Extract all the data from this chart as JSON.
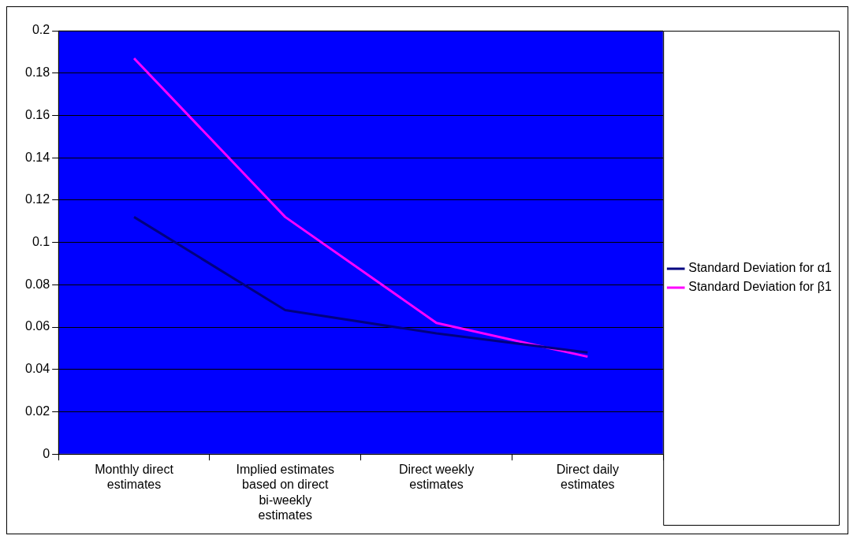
{
  "chart_data": {
    "type": "line",
    "categories": [
      "Monthly direct estimates",
      "Implied estimates based on direct bi-weekly estimates",
      "Direct weekly estimates",
      "Direct daily estimates"
    ],
    "series": [
      {
        "name": "Standard Deviation for α1",
        "color": "#000080",
        "values": [
          0.112,
          0.068,
          0.057,
          0.048
        ]
      },
      {
        "name": "Standard Deviation for β1",
        "color": "#ff00ff",
        "values": [
          0.187,
          0.112,
          0.062,
          0.046
        ]
      }
    ],
    "ylim": [
      0,
      0.2
    ],
    "yticks": [
      0,
      0.02,
      0.04,
      0.06,
      0.08,
      0.1,
      0.12,
      0.14,
      0.16,
      0.18,
      0.2
    ],
    "grid": "y",
    "legend": "right",
    "marker": "none",
    "line_style": "solid"
  }
}
